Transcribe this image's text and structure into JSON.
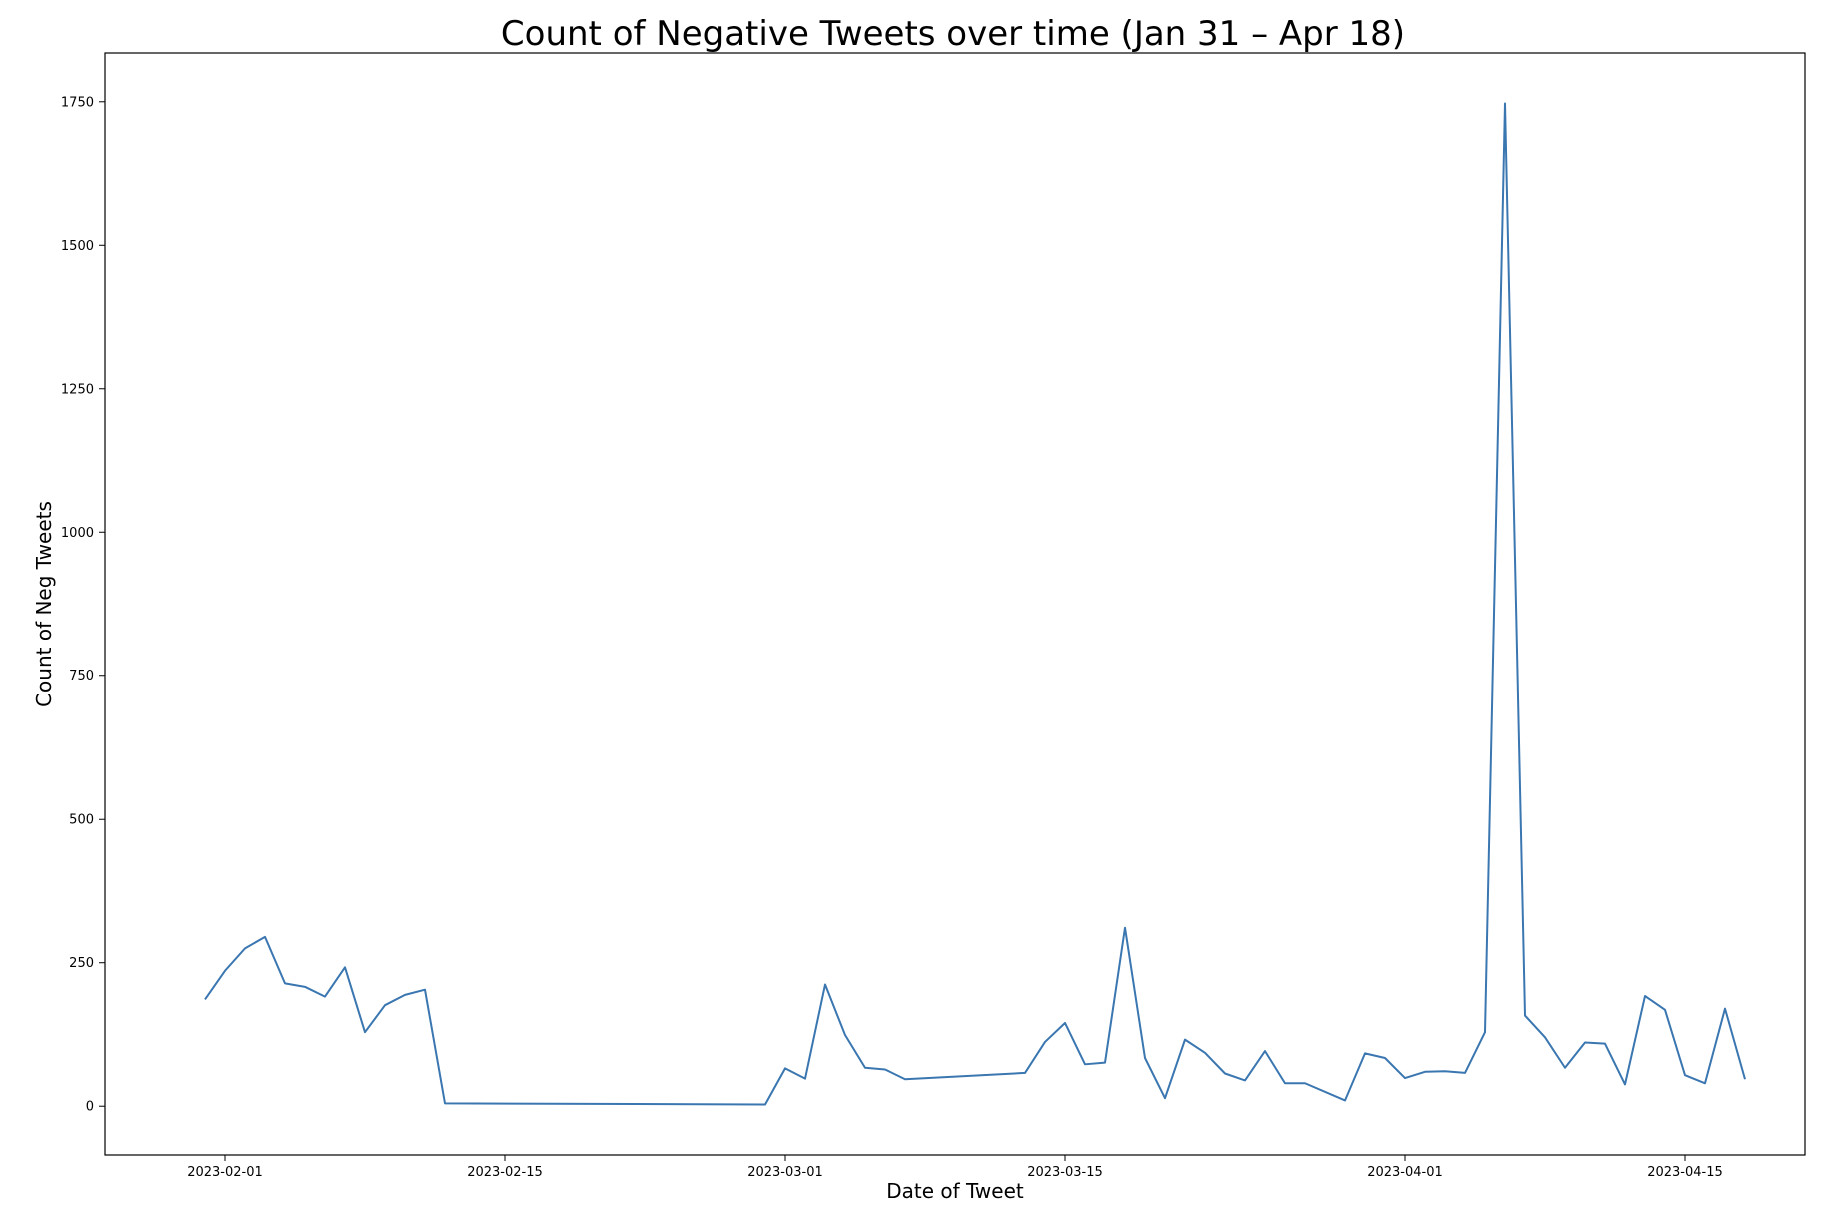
{
  "chart_data": {
    "type": "line",
    "title": "Count of Negative Tweets over time (Jan 31 – Apr 18)",
    "xlabel": "Date of Tweet",
    "ylabel": "Count of Neg Tweets",
    "xlim": [
      "2023-01-26",
      "2023-04-21"
    ],
    "ylim": [
      -85,
      1835
    ],
    "x_ticks": [
      "2023-02-01",
      "2023-02-15",
      "2023-03-01",
      "2023-03-15",
      "2023-04-01",
      "2023-04-15"
    ],
    "y_ticks": [
      0,
      250,
      500,
      750,
      1000,
      1250,
      1500,
      1750
    ],
    "grid": false,
    "line_color": "#3a76b0",
    "series": [
      {
        "x": [
          "2023-01-31",
          "2023-02-01",
          "2023-02-02",
          "2023-02-03",
          "2023-02-04",
          "2023-02-05",
          "2023-02-06",
          "2023-02-07",
          "2023-02-08",
          "2023-02-09",
          "2023-02-10",
          "2023-02-11",
          "2023-02-12",
          "2023-02-28",
          "2023-03-01",
          "2023-03-02",
          "2023-03-03",
          "2023-03-04",
          "2023-03-05",
          "2023-03-06",
          "2023-03-07",
          "2023-03-13",
          "2023-03-14",
          "2023-03-15",
          "2023-03-16",
          "2023-03-17",
          "2023-03-18",
          "2023-03-19",
          "2023-03-20",
          "2023-03-21",
          "2023-03-22",
          "2023-03-23",
          "2023-03-24",
          "2023-03-25",
          "2023-03-26",
          "2023-03-27",
          "2023-03-29",
          "2023-03-30",
          "2023-03-31",
          "2023-04-01",
          "2023-04-02",
          "2023-04-03",
          "2023-04-04",
          "2023-04-05",
          "2023-04-06",
          "2023-04-07",
          "2023-04-08",
          "2023-04-09",
          "2023-04-10",
          "2023-04-11",
          "2023-04-12",
          "2023-04-13",
          "2023-04-14",
          "2023-04-15",
          "2023-04-16",
          "2023-04-17",
          "2023-04-18"
        ],
        "values": [
          186,
          236,
          275,
          295,
          214,
          208,
          191,
          242,
          129,
          176,
          194,
          203,
          5,
          3,
          66,
          48,
          212,
          124,
          67,
          64,
          47,
          58,
          112,
          145,
          73,
          76,
          311,
          84,
          14,
          116,
          93,
          57,
          45,
          96,
          40,
          40,
          10,
          92,
          84,
          49,
          60,
          61,
          58,
          129,
          1747,
          158,
          120,
          67,
          111,
          109,
          38,
          192,
          168,
          54,
          40,
          170,
          47
        ]
      }
    ]
  }
}
